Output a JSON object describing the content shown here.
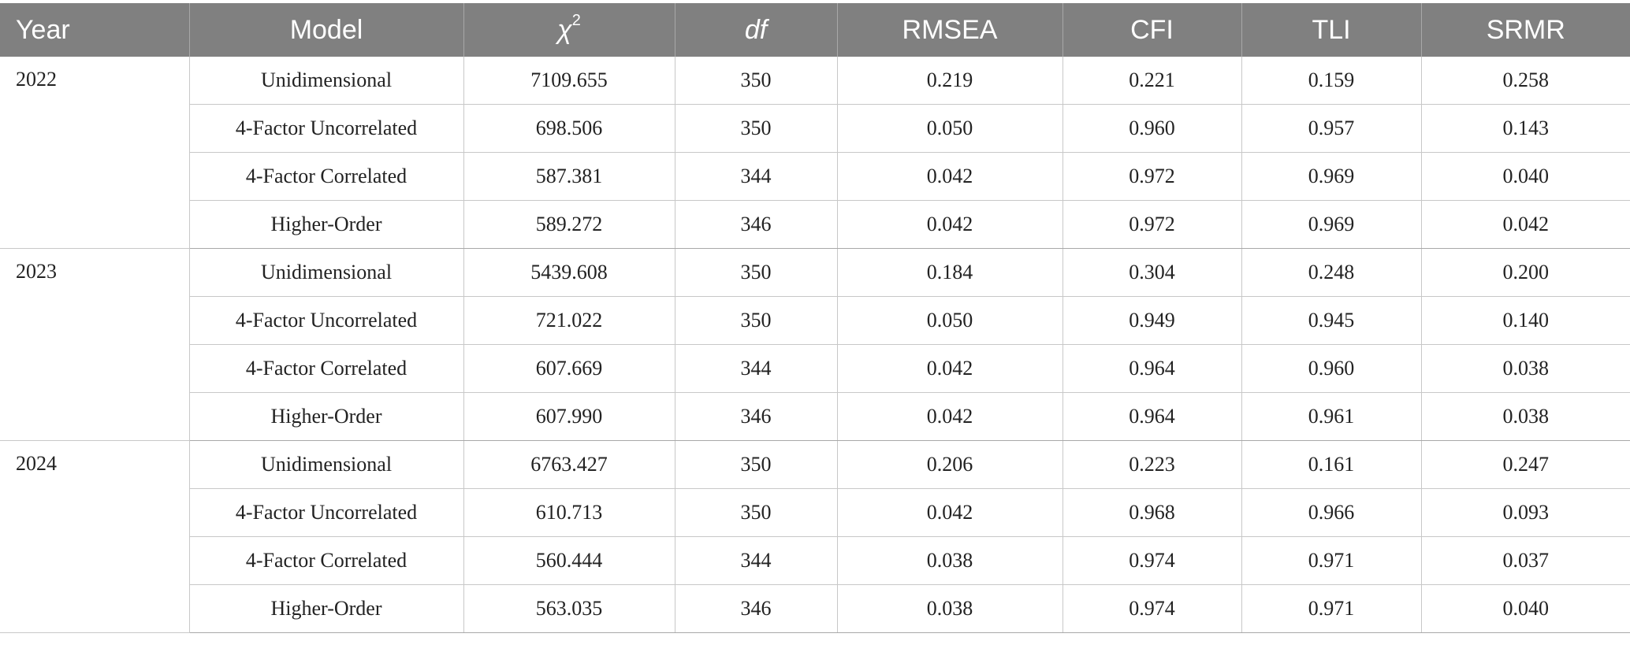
{
  "headers": {
    "year": "Year",
    "model": "Model",
    "chi_base": "χ",
    "chi_sup": "2",
    "df": "df",
    "rmsea": "RMSEA",
    "cfi": "CFI",
    "tli": "TLI",
    "srmr": "SRMR"
  },
  "groups": [
    {
      "year": "2022",
      "rows": [
        {
          "model": "Unidimensional",
          "chi2": "7109.655",
          "df": "350",
          "rmsea": "0.219",
          "cfi": "0.221",
          "tli": "0.159",
          "srmr": "0.258"
        },
        {
          "model": "4-Factor Uncorrelated",
          "chi2": "698.506",
          "df": "350",
          "rmsea": "0.050",
          "cfi": "0.960",
          "tli": "0.957",
          "srmr": "0.143"
        },
        {
          "model": "4-Factor Correlated",
          "chi2": "587.381",
          "df": "344",
          "rmsea": "0.042",
          "cfi": "0.972",
          "tli": "0.969",
          "srmr": "0.040"
        },
        {
          "model": "Higher-Order",
          "chi2": "589.272",
          "df": "346",
          "rmsea": "0.042",
          "cfi": "0.972",
          "tli": "0.969",
          "srmr": "0.042"
        }
      ]
    },
    {
      "year": "2023",
      "rows": [
        {
          "model": "Unidimensional",
          "chi2": "5439.608",
          "df": "350",
          "rmsea": "0.184",
          "cfi": "0.304",
          "tli": "0.248",
          "srmr": "0.200"
        },
        {
          "model": "4-Factor Uncorrelated",
          "chi2": "721.022",
          "df": "350",
          "rmsea": "0.050",
          "cfi": "0.949",
          "tli": "0.945",
          "srmr": "0.140"
        },
        {
          "model": "4-Factor Correlated",
          "chi2": "607.669",
          "df": "344",
          "rmsea": "0.042",
          "cfi": "0.964",
          "tli": "0.960",
          "srmr": "0.038"
        },
        {
          "model": "Higher-Order",
          "chi2": "607.990",
          "df": "346",
          "rmsea": "0.042",
          "cfi": "0.964",
          "tli": "0.961",
          "srmr": "0.038"
        }
      ]
    },
    {
      "year": "2024",
      "rows": [
        {
          "model": "Unidimensional",
          "chi2": "6763.427",
          "df": "350",
          "rmsea": "0.206",
          "cfi": "0.223",
          "tli": "0.161",
          "srmr": "0.247"
        },
        {
          "model": "4-Factor Uncorrelated",
          "chi2": "610.713",
          "df": "350",
          "rmsea": "0.042",
          "cfi": "0.968",
          "tli": "0.966",
          "srmr": "0.093"
        },
        {
          "model": "4-Factor Correlated",
          "chi2": "560.444",
          "df": "344",
          "rmsea": "0.038",
          "cfi": "0.974",
          "tli": "0.971",
          "srmr": "0.037"
        },
        {
          "model": "Higher-Order",
          "chi2": "563.035",
          "df": "346",
          "rmsea": "0.038",
          "cfi": "0.974",
          "tli": "0.971",
          "srmr": "0.040"
        }
      ]
    }
  ],
  "colors": {
    "header_bg": "#808080",
    "header_text": "#ffffff",
    "grid_line": "#c8c8c8"
  }
}
